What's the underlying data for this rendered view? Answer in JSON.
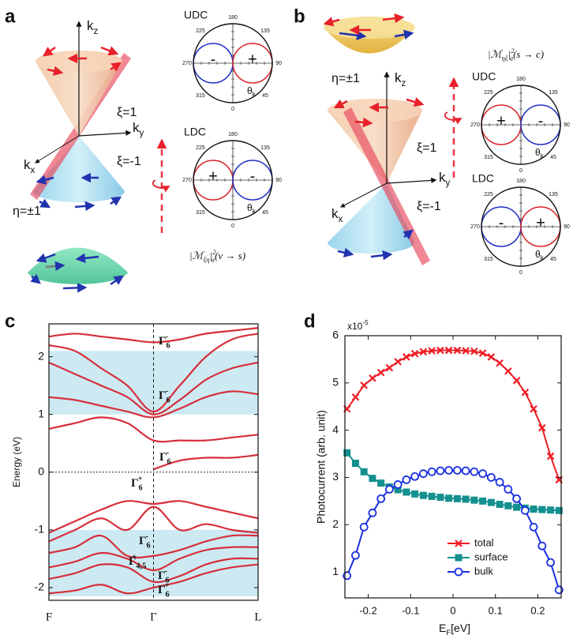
{
  "panels": {
    "a": {
      "letter": "a",
      "kz": {
        "main": "k",
        "sub": "z"
      },
      "ky": {
        "main": "k",
        "sub": "y"
      },
      "kx": {
        "main": "k",
        "sub": "x"
      },
      "xi_up": "ξ=1",
      "xi_down": "ξ=-1",
      "eta": "η=±1",
      "polar": [
        {
          "label": "UDC",
          "left": "-",
          "left_color": "#1f2fc0",
          "right": "+",
          "right_color": "#d8232a"
        },
        {
          "label": "LDC",
          "left": "+",
          "left_color": "#d8232a",
          "right": "-",
          "right_color": "#1f2fc0"
        }
      ],
      "formula": {
        "pre": "|ℳ",
        "sub": "ξη",
        "mid": "|",
        "sup": "2",
        "sub2": "a",
        "post": "(v → s)"
      }
    },
    "b": {
      "letter": "b",
      "kz": {
        "main": "k",
        "sub": "z"
      },
      "ky": {
        "main": "k",
        "sub": "y"
      },
      "kx": {
        "main": "k",
        "sub": "x"
      },
      "xi_up": "ξ=1",
      "xi_down": "ξ=-1",
      "eta": "η=±1",
      "polar": [
        {
          "label": "UDC",
          "left": "+",
          "left_color": "#d8232a",
          "right": "-",
          "right_color": "#1f2fc0"
        },
        {
          "label": "LDC",
          "left": "-",
          "left_color": "#1f2fc0",
          "right": "+",
          "right_color": "#d8232a"
        }
      ],
      "formula": {
        "pre": "|ℳ",
        "sub": "ηξ",
        "mid": "|",
        "sup": "2",
        "sub2": "a",
        "post": "(s → c)"
      }
    },
    "c": {
      "letter": "c"
    },
    "d": {
      "letter": "d"
    }
  },
  "polar_angles": [
    180,
    135,
    90,
    45,
    0,
    315,
    270,
    225
  ],
  "theta": {
    "main": "θ",
    "sub": "k"
  },
  "chart_data": [
    {
      "type": "band",
      "y_label": "Energy (eV)",
      "categories": [
        "F",
        "Γ",
        "L"
      ],
      "x": [
        0,
        0.125,
        0.25,
        0.375,
        0.5,
        0.625,
        0.75,
        0.875,
        1
      ],
      "xlim": [
        0,
        1
      ],
      "ylim": [
        -2.22,
        2.57
      ],
      "yticks": [
        -2,
        -1,
        0,
        1,
        2
      ],
      "color": "#d62f3a",
      "shaded": [
        [
          1,
          2.1
        ],
        [
          -2.15,
          -1
        ]
      ],
      "shade_color": "#cdeaf3",
      "bands": [
        [
          2.35,
          2.4,
          2.35,
          2.3,
          2.25,
          2.3,
          2.4,
          2.45,
          2.5
        ],
        [
          2.2,
          2.1,
          1.8,
          1.5,
          1.05,
          1.5,
          2.0,
          2.3,
          2.4
        ],
        [
          1.9,
          1.7,
          1.5,
          1.3,
          1.0,
          1.25,
          1.6,
          1.8,
          1.9
        ],
        [
          1.3,
          1.25,
          1.15,
          1.05,
          0.95,
          1.1,
          1.3,
          1.4,
          1.35
        ],
        [
          0.75,
          0.85,
          0.95,
          0.85,
          0.55,
          0.55,
          0.55,
          0.6,
          0.65
        ],
        [
          null,
          null,
          null,
          null,
          0.05,
          0.2,
          0.25,
          0.25,
          0.3
        ],
        [
          -1.05,
          -0.85,
          -0.65,
          -0.5,
          -0.55,
          -0.5,
          -0.6,
          -0.7,
          -0.8
        ],
        [
          -1.2,
          -1.0,
          -0.8,
          -1.0,
          -0.6,
          -1.0,
          -0.9,
          -1.0,
          -1.05
        ],
        [
          -1.4,
          -1.3,
          -1.1,
          -1.45,
          -1.45,
          -1.35,
          -1.2,
          -1.1,
          -1.1
        ],
        [
          -1.65,
          -1.55,
          -1.4,
          -1.5,
          -1.7,
          -1.5,
          -1.35,
          -1.3,
          -1.3
        ],
        [
          -1.85,
          -1.75,
          -1.6,
          -1.65,
          -1.9,
          -1.8,
          -1.6,
          -1.5,
          -1.5
        ],
        [
          -2.1,
          -2.05,
          -1.95,
          -2.1,
          -2.0,
          -1.9,
          -1.75,
          -1.65,
          -1.6
        ]
      ],
      "annotations": [
        {
          "main": "Γ",
          "sub": "6",
          "sup": "-"
        },
        {
          "main": "Γ",
          "sub": "6",
          "sup": "-"
        },
        {
          "main": "Γ",
          "sub": "6",
          "sup": "-"
        },
        {
          "main": "Γ",
          "sub": "6",
          "sup": "+"
        },
        {
          "main": "Γ",
          "sub": "6",
          "sup": "-"
        },
        {
          "main": "Γ",
          "sub": "4,5",
          "sup": "+"
        },
        {
          "main": "Γ",
          "sub": "6",
          "sup": "-"
        },
        {
          "main": "Γ",
          "sub": "6",
          "sup": "+"
        }
      ]
    },
    {
      "type": "line",
      "y_label": "Photocurrent (arb. unit)",
      "x_label": {
        "main": "E",
        "sub": "F",
        "post": "[eV]"
      },
      "y_exponent": {
        "main": "x10",
        "sup": "-5"
      },
      "x": [
        -0.25,
        -0.23,
        -0.21,
        -0.19,
        -0.17,
        -0.15,
        -0.13,
        -0.11,
        -0.09,
        -0.07,
        -0.05,
        -0.03,
        -0.01,
        0.01,
        0.03,
        0.05,
        0.07,
        0.09,
        0.11,
        0.13,
        0.15,
        0.17,
        0.19,
        0.21,
        0.23,
        0.25
      ],
      "xlim": [
        -0.255,
        0.255
      ],
      "xticks": [
        -0.2,
        -0.1,
        0,
        0.1,
        0.2
      ],
      "ylim": [
        0.45,
        6
      ],
      "yticks": [
        1,
        2,
        3,
        4,
        5,
        6
      ],
      "series": [
        {
          "name": "total",
          "color": "#ee1c24",
          "marker": "x",
          "values": [
            4.45,
            4.7,
            4.95,
            5.1,
            5.22,
            5.32,
            5.45,
            5.55,
            5.62,
            5.66,
            5.68,
            5.69,
            5.69,
            5.69,
            5.68,
            5.67,
            5.63,
            5.55,
            5.42,
            5.25,
            5.05,
            4.8,
            4.45,
            4.05,
            3.45,
            2.95
          ]
        },
        {
          "name": "surface",
          "color": "#149090",
          "marker": "square",
          "values": [
            3.52,
            3.3,
            3.12,
            2.98,
            2.88,
            2.8,
            2.74,
            2.69,
            2.65,
            2.62,
            2.6,
            2.58,
            2.56,
            2.55,
            2.54,
            2.52,
            2.5,
            2.47,
            2.43,
            2.4,
            2.37,
            2.35,
            2.33,
            2.32,
            2.31,
            2.3
          ]
        },
        {
          "name": "bulk",
          "color": "#1a2fe0",
          "marker": "circle",
          "values": [
            0.92,
            1.35,
            1.95,
            2.25,
            2.55,
            2.75,
            2.85,
            2.95,
            3.02,
            3.08,
            3.12,
            3.14,
            3.15,
            3.15,
            3.14,
            3.12,
            3.08,
            3.0,
            2.9,
            2.75,
            2.55,
            2.3,
            1.95,
            1.55,
            1.2,
            0.62
          ]
        }
      ]
    }
  ]
}
